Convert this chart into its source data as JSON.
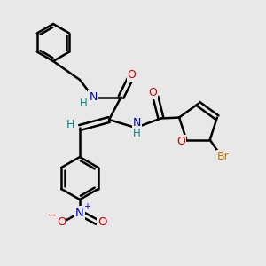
{
  "bg_color": "#e8e8e8",
  "bond_color": "#000000",
  "bond_width": 1.8,
  "atom_colors": {
    "N": "#0000cc",
    "O": "#cc0000",
    "Br": "#bb7700",
    "H": "#008888",
    "C": "#000000"
  },
  "font_size_atom": 8.5,
  "figsize": [
    3.0,
    3.0
  ],
  "dpi": 100
}
